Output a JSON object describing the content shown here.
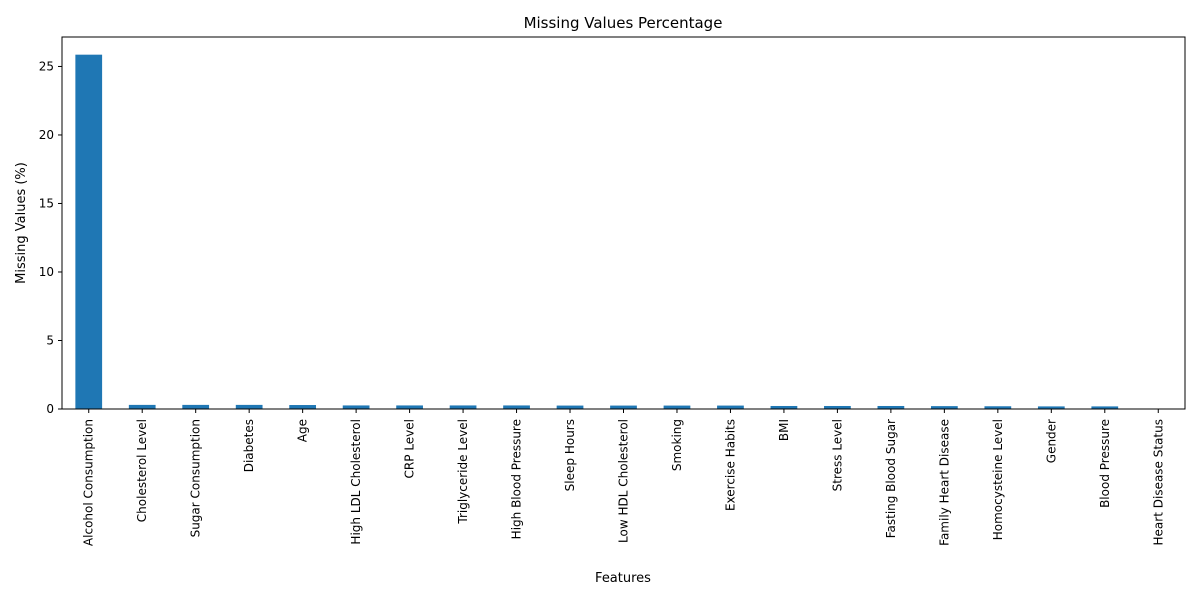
{
  "chart_data": {
    "type": "bar",
    "title": "Missing Values Percentage",
    "xlabel": "Features",
    "ylabel": "Missing Values (%)",
    "categories": [
      "Alcohol Consumption",
      "Cholesterol Level",
      "Sugar Consumption",
      "Diabetes",
      "Age",
      "High LDL Cholesterol",
      "CRP Level",
      "Triglyceride Level",
      "High Blood Pressure",
      "Sleep Hours",
      "Low HDL Cholesterol",
      "Smoking",
      "Exercise Habits",
      "BMI",
      "Stress Level",
      "Fasting Blood Sugar",
      "Family Heart Disease",
      "Homocysteine Level",
      "Gender",
      "Blood Pressure",
      "Heart Disease Status"
    ],
    "values": [
      25.86,
      0.3,
      0.3,
      0.3,
      0.29,
      0.26,
      0.26,
      0.26,
      0.26,
      0.25,
      0.25,
      0.25,
      0.25,
      0.22,
      0.22,
      0.22,
      0.21,
      0.2,
      0.19,
      0.19,
      0.0
    ],
    "ylim": [
      0,
      27.15
    ],
    "yticks": [
      0,
      5,
      10,
      15,
      20,
      25
    ],
    "bar_color": "#1f77b4",
    "grid": false,
    "legend": "none"
  }
}
